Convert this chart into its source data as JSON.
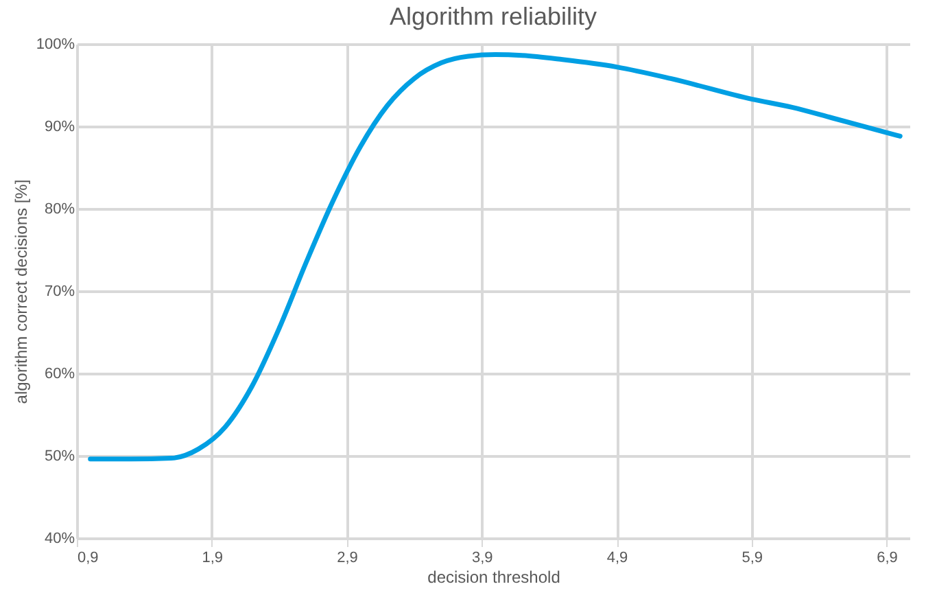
{
  "chart_data": {
    "type": "line",
    "title": "Algorithm reliability",
    "xlabel": "decision threshold",
    "ylabel": "algorithm correct decisions [%]",
    "x": [
      1.0,
      1.3,
      1.6,
      1.8,
      2.0,
      2.2,
      2.4,
      2.6,
      2.8,
      3.0,
      3.2,
      3.4,
      3.6,
      3.8,
      4.0,
      4.2,
      4.5,
      4.9,
      5.3,
      5.9,
      6.2,
      6.5,
      7.0
    ],
    "series": [
      {
        "color": "#009fe3",
        "values": [
          49.6,
          49.6,
          49.7,
          50.8,
          53.5,
          58.5,
          65.5,
          73.5,
          81,
          87.5,
          92.5,
          95.8,
          97.7,
          98.5,
          98.7,
          98.6,
          98.1,
          97.2,
          95.8,
          93.3,
          92.3,
          91,
          88.8
        ]
      }
    ],
    "xlim": [
      0.9,
      7.07
    ],
    "ylim": [
      40,
      100
    ],
    "xticks": [
      {
        "value": 0.9,
        "label": "0,9"
      },
      {
        "value": 1.9,
        "label": "1,9"
      },
      {
        "value": 2.9,
        "label": "2,9"
      },
      {
        "value": 3.9,
        "label": "3,9"
      },
      {
        "value": 4.9,
        "label": "4,9"
      },
      {
        "value": 5.9,
        "label": "5,9"
      },
      {
        "value": 6.9,
        "label": "6,9"
      }
    ],
    "yticks": [
      {
        "value": 40,
        "label": "40%"
      },
      {
        "value": 50,
        "label": "50%"
      },
      {
        "value": 60,
        "label": "60%"
      },
      {
        "value": 70,
        "label": "70%"
      },
      {
        "value": 80,
        "label": "80%"
      },
      {
        "value": 90,
        "label": "90%"
      },
      {
        "value": 100,
        "label": "100%"
      }
    ],
    "grid": true,
    "marker": "none",
    "line_style": "solid"
  }
}
